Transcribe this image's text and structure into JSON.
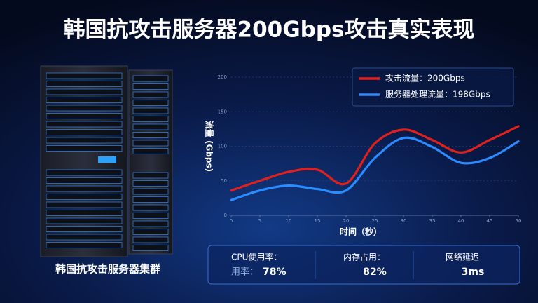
{
  "title": "韩国抗攻击服务器200Gbps攻击真实表现",
  "server_label": "韩国抗攻击服务器集群",
  "stats": [
    {
      "label": "CPU使用率：",
      "sub": "用率：",
      "value": "78%"
    },
    {
      "label": "内存占用：",
      "value": "82%"
    },
    {
      "label": "网络延迟",
      "value": "3ms"
    }
  ],
  "chart_data": {
    "type": "line",
    "x_label": "时间（秒）",
    "y_label": "流量 (Gbps)",
    "x": [
      0,
      5,
      10,
      15,
      20,
      25,
      30,
      35,
      40,
      45,
      50
    ],
    "xlim": [
      0,
      50
    ],
    "xticks": [
      0,
      5,
      10,
      15,
      20,
      25,
      30,
      35,
      40,
      45,
      50
    ],
    "ylim": [
      0,
      200
    ],
    "yticks": [
      0,
      50,
      100,
      150,
      200
    ],
    "grid": true,
    "legend": "upper right",
    "series": [
      {
        "name": "攻击流量：200Gbps",
        "color": "#e0201c",
        "values": [
          36,
          50,
          63,
          66,
          46,
          104,
          124,
          109,
          91,
          109,
          129
        ]
      },
      {
        "name": "服务器处理流量：198Gbps",
        "color": "#2a8cff",
        "values": [
          22,
          36,
          43,
          38,
          36,
          83,
          112,
          99,
          76,
          83,
          107
        ]
      }
    ]
  }
}
